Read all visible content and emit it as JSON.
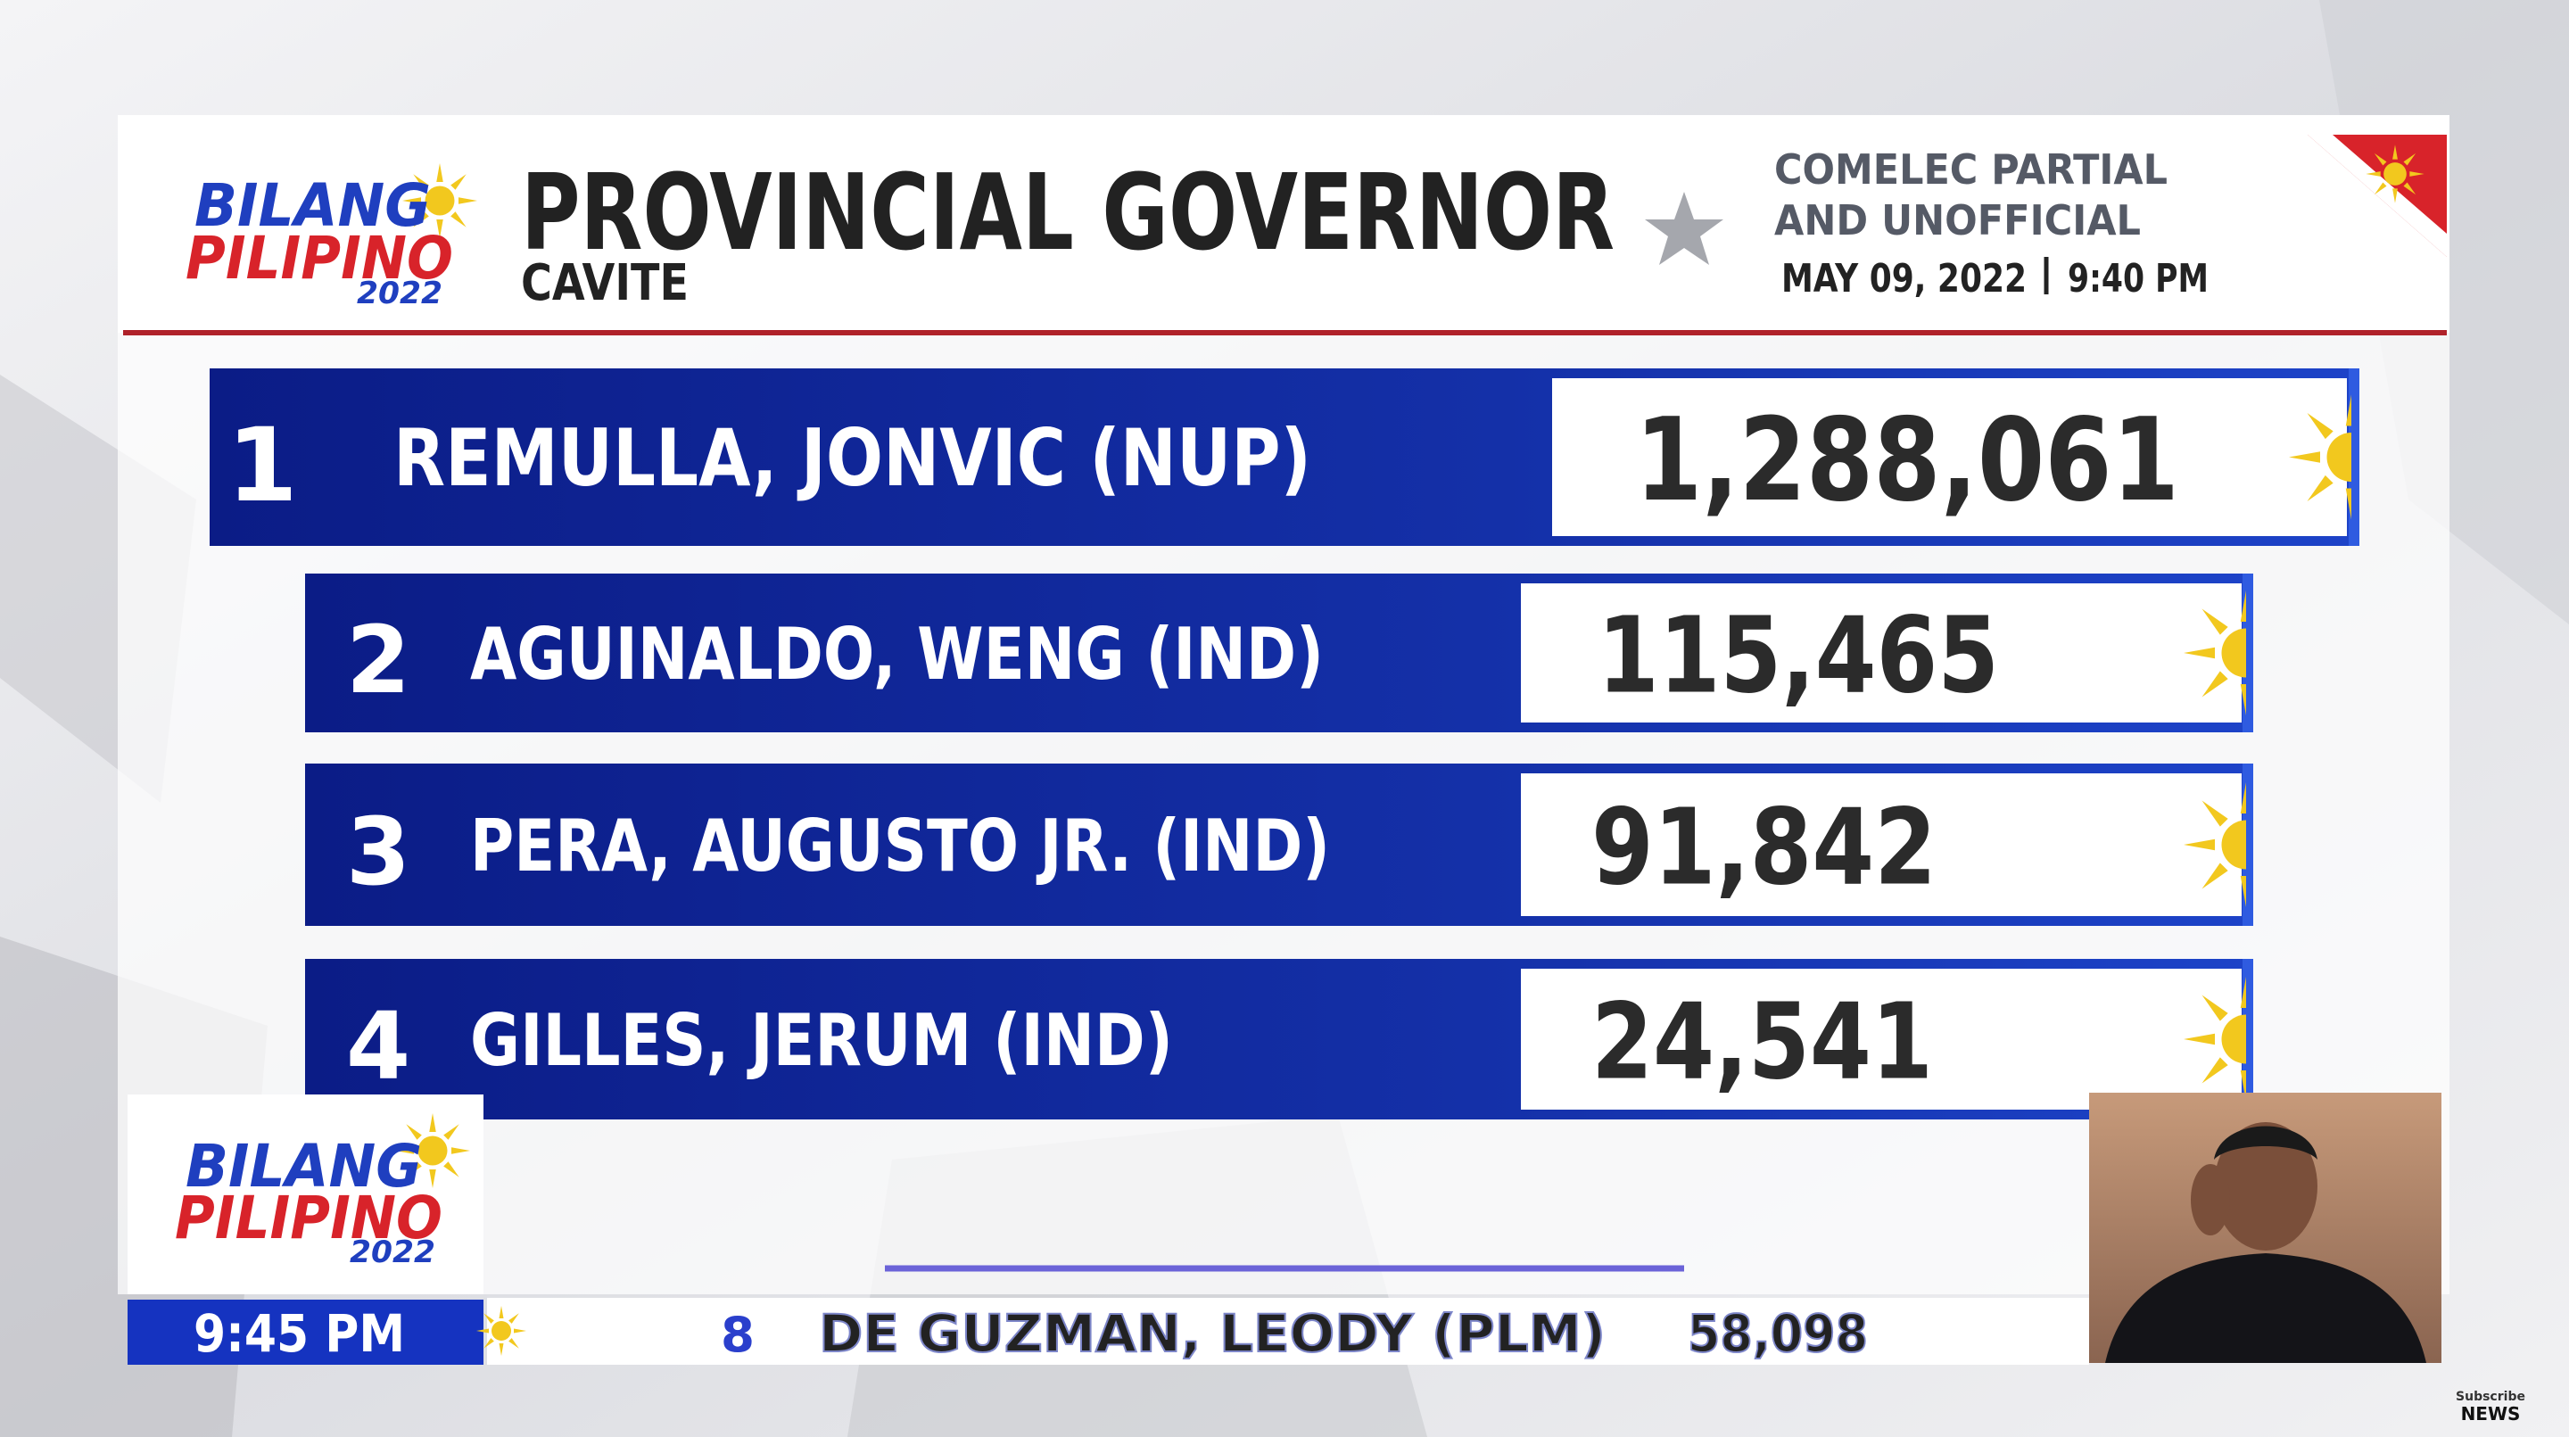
{
  "header": {
    "logo": [
      "BILANG",
      "PILIPINO",
      "2022"
    ],
    "title": "PROVINCIAL GOVERNOR",
    "subtitle": "CAVITE",
    "source": [
      "COMELEC PARTIAL",
      "AND UNOFFICIAL"
    ],
    "date": "MAY 09, 2022",
    "time": "9:40 PM"
  },
  "results": [
    {
      "rank": "1",
      "name": "REMULLA, JONVIC (NUP)",
      "votes": "1,288,061"
    },
    {
      "rank": "2",
      "name": "AGUINALDO, WENG (IND)",
      "votes": "115,465"
    },
    {
      "rank": "3",
      "name": "PERA, AUGUSTO JR. (IND)",
      "votes": "91,842"
    },
    {
      "rank": "4",
      "name": "GILLES, JERUM (IND)",
      "votes": "24,541"
    }
  ],
  "ticker": {
    "time": "9:45 PM",
    "rank": "8",
    "name": "DE GUZMAN, LEODY (PLM)",
    "votes": "58,098"
  },
  "watermark": [
    "Subscribe",
    "NEWS"
  ]
}
